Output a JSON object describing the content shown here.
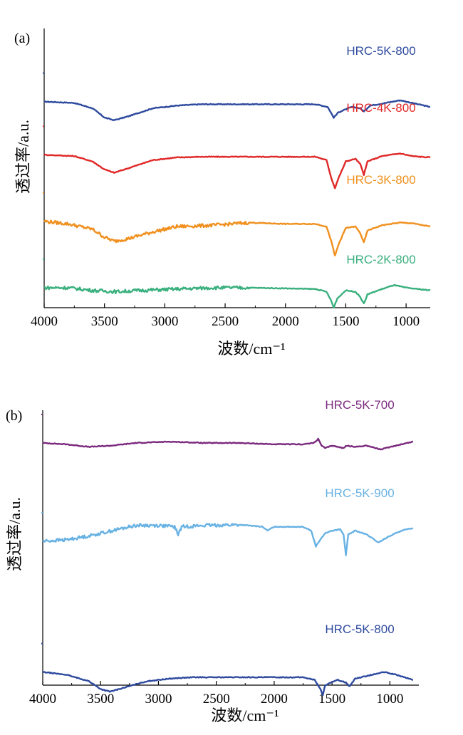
{
  "chart_data": [
    {
      "type": "line",
      "panel_label": "(a)",
      "xlabel": "波数/cm⁻¹",
      "ylabel": "透过率/a.u.",
      "xlim": [
        4000,
        800
      ],
      "x_reversed": true,
      "xticks": [
        4000,
        3500,
        3000,
        2500,
        2000,
        1500,
        1000
      ],
      "ylim": [
        0,
        4.2
      ],
      "series": [
        {
          "name": "HRC-5K-800",
          "color": "#2e4a9e",
          "baseline": 3.1,
          "points": [
            [
              4000,
              3.1
            ],
            [
              3750,
              3.08
            ],
            [
              3600,
              3.0
            ],
            [
              3500,
              2.86
            ],
            [
              3420,
              2.82
            ],
            [
              3300,
              2.88
            ],
            [
              3100,
              3.0
            ],
            [
              2900,
              3.04
            ],
            [
              2700,
              3.06
            ],
            [
              2400,
              3.06
            ],
            [
              2000,
              3.06
            ],
            [
              1750,
              3.06
            ],
            [
              1650,
              3.02
            ],
            [
              1600,
              2.86
            ],
            [
              1560,
              2.94
            ],
            [
              1450,
              3.02
            ],
            [
              1380,
              3.0
            ],
            [
              1350,
              2.95
            ],
            [
              1300,
              3.04
            ],
            [
              1200,
              3.07
            ],
            [
              1050,
              3.12
            ],
            [
              950,
              3.08
            ],
            [
              800,
              3.02
            ]
          ]
        },
        {
          "name": "HRC-4K-800",
          "color": "#e02828",
          "baseline": 2.3,
          "points": [
            [
              4000,
              2.3
            ],
            [
              3750,
              2.28
            ],
            [
              3600,
              2.2
            ],
            [
              3500,
              2.08
            ],
            [
              3420,
              2.03
            ],
            [
              3300,
              2.1
            ],
            [
              3100,
              2.22
            ],
            [
              2900,
              2.26
            ],
            [
              2700,
              2.27
            ],
            [
              2400,
              2.27
            ],
            [
              2000,
              2.27
            ],
            [
              1750,
              2.27
            ],
            [
              1660,
              2.22
            ],
            [
              1620,
              1.95
            ],
            [
              1590,
              1.8
            ],
            [
              1560,
              1.95
            ],
            [
              1500,
              2.2
            ],
            [
              1420,
              2.24
            ],
            [
              1380,
              2.16
            ],
            [
              1350,
              2.0
            ],
            [
              1320,
              2.2
            ],
            [
              1200,
              2.28
            ],
            [
              1050,
              2.32
            ],
            [
              950,
              2.28
            ],
            [
              800,
              2.26
            ]
          ]
        },
        {
          "name": "HRC-3K-800",
          "color": "#f0901e",
          "baseline": 1.3,
          "points": [
            [
              4000,
              1.3
            ],
            [
              3800,
              1.26
            ],
            [
              3600,
              1.18
            ],
            [
              3500,
              1.06
            ],
            [
              3420,
              1.0
            ],
            [
              3300,
              1.04
            ],
            [
              3100,
              1.14
            ],
            [
              2900,
              1.22
            ],
            [
              2600,
              1.24
            ],
            [
              2300,
              1.28
            ],
            [
              2000,
              1.26
            ],
            [
              1750,
              1.26
            ],
            [
              1660,
              1.22
            ],
            [
              1620,
              1.0
            ],
            [
              1590,
              0.78
            ],
            [
              1560,
              0.95
            ],
            [
              1500,
              1.2
            ],
            [
              1420,
              1.22
            ],
            [
              1380,
              1.12
            ],
            [
              1350,
              0.98
            ],
            [
              1320,
              1.16
            ],
            [
              1200,
              1.24
            ],
            [
              1050,
              1.28
            ],
            [
              950,
              1.27
            ],
            [
              800,
              1.22
            ]
          ]
        },
        {
          "name": "HRC-2K-800",
          "color": "#3ab07e",
          "baseline": 0.3,
          "points": [
            [
              4000,
              0.3
            ],
            [
              3800,
              0.3
            ],
            [
              3600,
              0.26
            ],
            [
              3400,
              0.24
            ],
            [
              3200,
              0.26
            ],
            [
              2900,
              0.28
            ],
            [
              2600,
              0.3
            ],
            [
              2300,
              0.3
            ],
            [
              2000,
              0.29
            ],
            [
              1750,
              0.28
            ],
            [
              1660,
              0.24
            ],
            [
              1620,
              0.1
            ],
            [
              1600,
              0.0
            ],
            [
              1570,
              0.14
            ],
            [
              1500,
              0.26
            ],
            [
              1420,
              0.24
            ],
            [
              1380,
              0.16
            ],
            [
              1350,
              0.06
            ],
            [
              1320,
              0.2
            ],
            [
              1200,
              0.28
            ],
            [
              1100,
              0.34
            ],
            [
              1000,
              0.3
            ],
            [
              900,
              0.28
            ],
            [
              800,
              0.26
            ]
          ]
        }
      ]
    },
    {
      "type": "line",
      "panel_label": "(b)",
      "xlabel": "波数/cm⁻¹",
      "ylabel": "透过率/a.u.",
      "xlim": [
        4000,
        750
      ],
      "x_reversed": true,
      "xticks": [
        4000,
        3500,
        3000,
        2500,
        2000,
        1500,
        1000
      ],
      "ylim": [
        0,
        4.2
      ],
      "series": [
        {
          "name": "HRC-5K-700",
          "color": "#7b2a7e",
          "baseline": 3.7,
          "points": [
            [
              4000,
              3.7
            ],
            [
              3800,
              3.68
            ],
            [
              3600,
              3.64
            ],
            [
              3400,
              3.66
            ],
            [
              3200,
              3.7
            ],
            [
              2900,
              3.72
            ],
            [
              2600,
              3.7
            ],
            [
              2300,
              3.7
            ],
            [
              2000,
              3.68
            ],
            [
              1750,
              3.68
            ],
            [
              1660,
              3.7
            ],
            [
              1620,
              3.76
            ],
            [
              1590,
              3.66
            ],
            [
              1560,
              3.62
            ],
            [
              1500,
              3.66
            ],
            [
              1400,
              3.62
            ],
            [
              1380,
              3.66
            ],
            [
              1300,
              3.64
            ],
            [
              1200,
              3.66
            ],
            [
              1080,
              3.6
            ],
            [
              950,
              3.66
            ],
            [
              800,
              3.72
            ]
          ]
        },
        {
          "name": "HRC-5K-900",
          "color": "#68b2e3",
          "baseline": 2.2,
          "points": [
            [
              4000,
              2.2
            ],
            [
              3800,
              2.22
            ],
            [
              3600,
              2.28
            ],
            [
              3400,
              2.36
            ],
            [
              3200,
              2.44
            ],
            [
              3000,
              2.44
            ],
            [
              2860,
              2.42
            ],
            [
              2830,
              2.3
            ],
            [
              2800,
              2.42
            ],
            [
              2600,
              2.44
            ],
            [
              2300,
              2.45
            ],
            [
              2100,
              2.42
            ],
            [
              2060,
              2.36
            ],
            [
              2000,
              2.42
            ],
            [
              1750,
              2.42
            ],
            [
              1680,
              2.36
            ],
            [
              1640,
              2.12
            ],
            [
              1610,
              2.2
            ],
            [
              1560,
              2.32
            ],
            [
              1500,
              2.36
            ],
            [
              1430,
              2.38
            ],
            [
              1400,
              2.3
            ],
            [
              1380,
              1.98
            ],
            [
              1360,
              2.3
            ],
            [
              1300,
              2.36
            ],
            [
              1200,
              2.3
            ],
            [
              1100,
              2.18
            ],
            [
              1000,
              2.28
            ],
            [
              900,
              2.36
            ],
            [
              800,
              2.4
            ]
          ]
        },
        {
          "name": "HRC-5K-800",
          "color": "#2e4a9e",
          "baseline": 0.2,
          "points": [
            [
              4000,
              0.2
            ],
            [
              3800,
              0.16
            ],
            [
              3600,
              0.06
            ],
            [
              3500,
              -0.06
            ],
            [
              3420,
              -0.1
            ],
            [
              3300,
              -0.04
            ],
            [
              3100,
              0.06
            ],
            [
              2900,
              0.1
            ],
            [
              2700,
              0.12
            ],
            [
              2400,
              0.12
            ],
            [
              2000,
              0.12
            ],
            [
              1750,
              0.12
            ],
            [
              1650,
              0.08
            ],
            [
              1600,
              -0.06
            ],
            [
              1580,
              -0.16
            ],
            [
              1560,
              0.0
            ],
            [
              1450,
              0.08
            ],
            [
              1380,
              0.04
            ],
            [
              1350,
              -0.02
            ],
            [
              1300,
              0.1
            ],
            [
              1200,
              0.14
            ],
            [
              1050,
              0.2
            ],
            [
              950,
              0.16
            ],
            [
              800,
              0.08
            ]
          ]
        }
      ]
    }
  ]
}
